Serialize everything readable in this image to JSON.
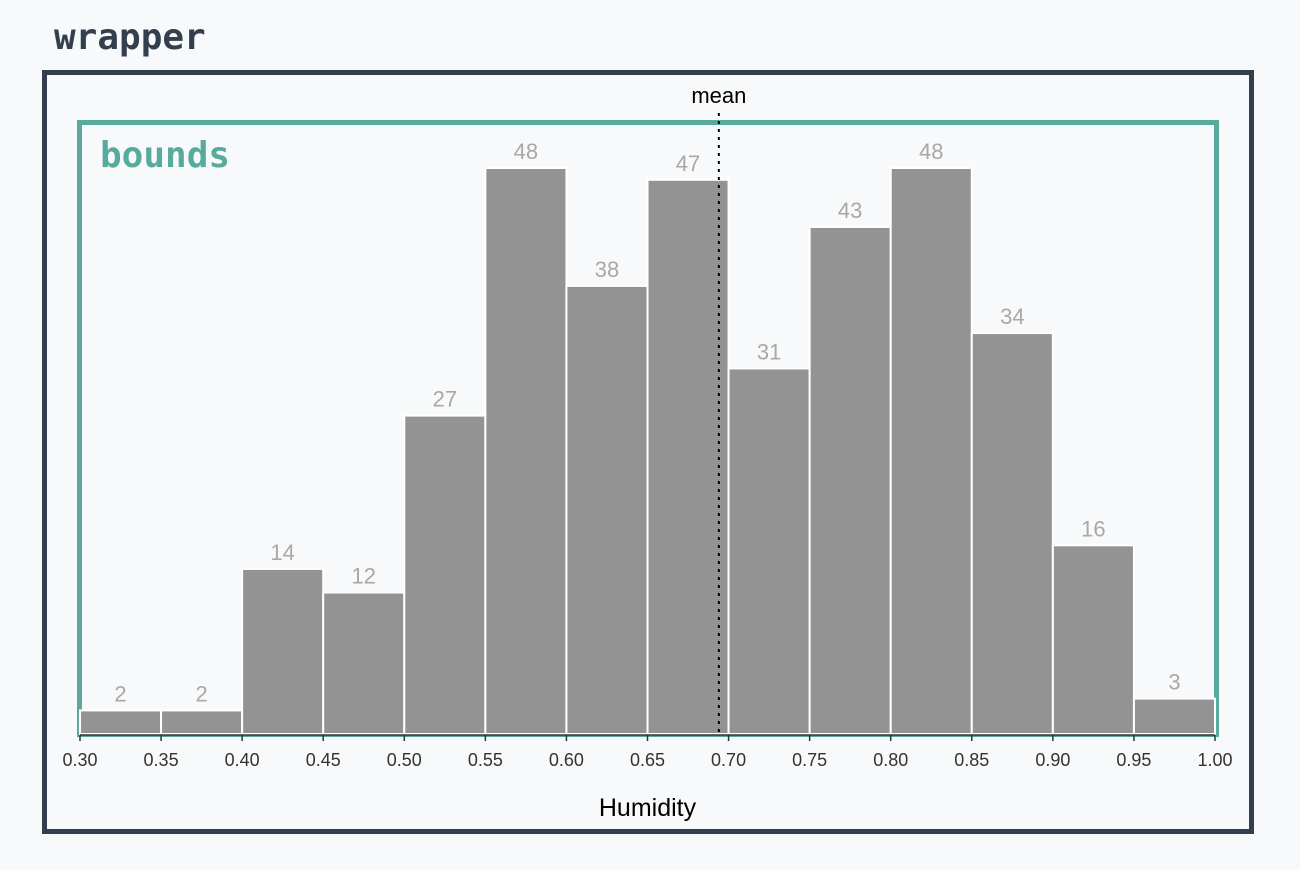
{
  "wrapper_label": "wrapper",
  "bounds_label": "bounds",
  "colors": {
    "wrapper": "#343f4d",
    "bounds": "#56ab9d",
    "bar": "#939393",
    "bar_label": "#a8a8a8"
  },
  "chart_data": {
    "type": "bar",
    "title": "",
    "xlabel": "Humidity",
    "ylabel": "",
    "x_ticks": [
      "0.30",
      "0.35",
      "0.40",
      "0.45",
      "0.50",
      "0.55",
      "0.60",
      "0.65",
      "0.70",
      "0.75",
      "0.80",
      "0.85",
      "0.90",
      "0.95",
      "1.00"
    ],
    "xlim": [
      0.3,
      1.0
    ],
    "ylim": [
      0,
      48
    ],
    "bins": [
      {
        "x0": 0.3,
        "x1": 0.35,
        "count": 2
      },
      {
        "x0": 0.35,
        "x1": 0.4,
        "count": 2
      },
      {
        "x0": 0.4,
        "x1": 0.45,
        "count": 14
      },
      {
        "x0": 0.45,
        "x1": 0.5,
        "count": 12
      },
      {
        "x0": 0.5,
        "x1": 0.55,
        "count": 27
      },
      {
        "x0": 0.55,
        "x1": 0.6,
        "count": 48
      },
      {
        "x0": 0.6,
        "x1": 0.65,
        "count": 38
      },
      {
        "x0": 0.65,
        "x1": 0.7,
        "count": 47
      },
      {
        "x0": 0.7,
        "x1": 0.75,
        "count": 31
      },
      {
        "x0": 0.75,
        "x1": 0.8,
        "count": 43
      },
      {
        "x0": 0.8,
        "x1": 0.85,
        "count": 48
      },
      {
        "x0": 0.85,
        "x1": 0.9,
        "count": 34
      },
      {
        "x0": 0.9,
        "x1": 0.95,
        "count": 16
      },
      {
        "x0": 0.95,
        "x1": 1.0,
        "count": 3
      }
    ],
    "mean": {
      "label": "mean",
      "value": 0.694
    }
  }
}
